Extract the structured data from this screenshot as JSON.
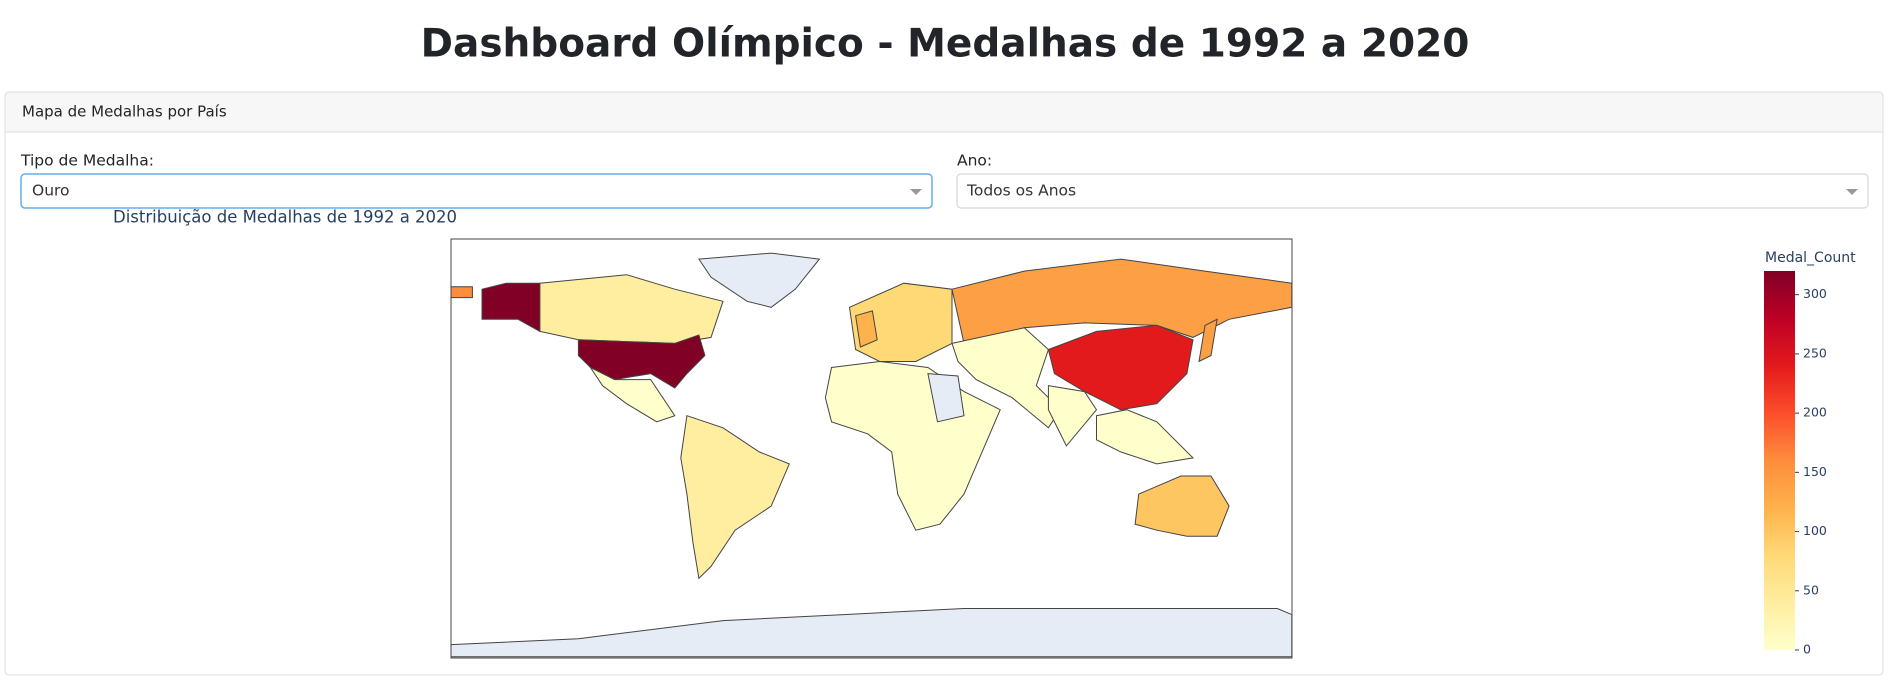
{
  "page_title": "Dashboard Olímpico - Medalhas de 1992 a 2020",
  "card_header": "Mapa de Medalhas por País",
  "controls": [
    {
      "label": "Tipo de Medalha:",
      "value": "Ouro"
    },
    {
      "label": "Ano:",
      "value": "Todos os Anos"
    }
  ],
  "chart_data": {
    "type": "choropleth",
    "title": "Distribuição de Medalhas de 1992 a 2020",
    "colorbar_title": "Medal_Count",
    "zlim": [
      0,
      320
    ],
    "zticks": [
      0,
      50,
      100,
      150,
      200,
      250,
      300
    ],
    "colorscale": [
      "#ffffcc",
      "#ffeda0",
      "#fed976",
      "#feb24c",
      "#fd8d3c",
      "#fc4e2a",
      "#e31a1c",
      "#bd0026",
      "#800026"
    ]
  }
}
